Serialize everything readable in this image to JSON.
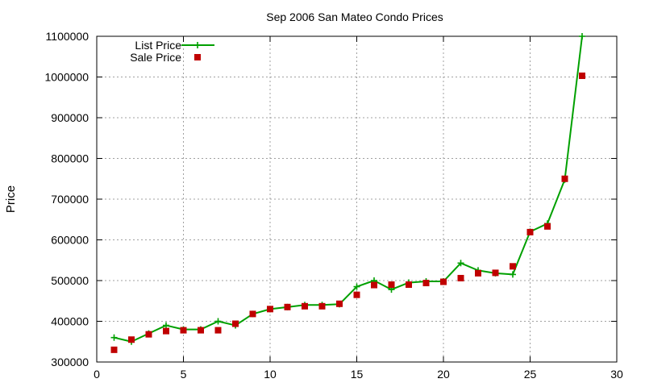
{
  "chart_data": {
    "type": "line",
    "title": "Sep 2006 San Mateo Condo Prices",
    "xlabel": "",
    "ylabel": "Price",
    "xlim": [
      0,
      30
    ],
    "ylim": [
      300000,
      1100000
    ],
    "x_ticks": [
      0,
      5,
      10,
      15,
      20,
      25,
      30
    ],
    "y_ticks": [
      300000,
      400000,
      500000,
      600000,
      700000,
      800000,
      900000,
      1000000,
      1100000
    ],
    "grid": true,
    "legend_position": "top-left",
    "series": [
      {
        "name": "List Price",
        "style": "line-plus",
        "color": "#00a000",
        "x": [
          1,
          2,
          3,
          4,
          5,
          6,
          7,
          8,
          9,
          10,
          11,
          12,
          13,
          14,
          15,
          16,
          17,
          18,
          19,
          20,
          21,
          22,
          23,
          24,
          25,
          26,
          27,
          28
        ],
        "values": [
          360000,
          350000,
          370000,
          390000,
          380000,
          380000,
          400000,
          390000,
          418000,
          430000,
          435000,
          440000,
          440000,
          442000,
          485000,
          500000,
          478000,
          495000,
          498000,
          498000,
          543000,
          525000,
          518000,
          515000,
          620000,
          640000,
          748000,
          1100000
        ]
      },
      {
        "name": "Sale Price",
        "style": "points-square",
        "color": "#c00000",
        "x": [
          1,
          2,
          3,
          4,
          5,
          6,
          7,
          8,
          9,
          10,
          11,
          12,
          13,
          14,
          15,
          16,
          17,
          18,
          19,
          20,
          21,
          22,
          23,
          24,
          25,
          26,
          27,
          28
        ],
        "values": [
          330000,
          355000,
          368000,
          376000,
          378000,
          378000,
          378000,
          394000,
          418000,
          430000,
          435000,
          437000,
          437000,
          443000,
          465000,
          489000,
          490000,
          490000,
          494000,
          497000,
          506000,
          518000,
          519000,
          535000,
          619000,
          633000,
          750000,
          1003000
        ]
      }
    ]
  }
}
